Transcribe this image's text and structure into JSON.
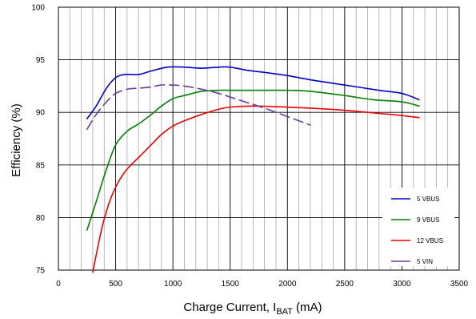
{
  "chart_data": {
    "type": "line",
    "xlabel": "Charge Current, I",
    "xlabel_sub": "BAT",
    "xlabel_unit": " (mA)",
    "ylabel": "Efficiency (%)",
    "xlim": [
      0,
      3500
    ],
    "ylim": [
      75,
      100
    ],
    "x_ticks": [
      0,
      500,
      1000,
      1500,
      2000,
      2500,
      3000,
      3500
    ],
    "y_ticks": [
      75,
      80,
      85,
      90,
      95,
      100
    ],
    "x_minor_step": 100,
    "grid": true,
    "legend_position": "bottom-right",
    "series": [
      {
        "name": "5 VBUS",
        "color": "#0000cc",
        "dashed": false,
        "points": [
          [
            250,
            89.4
          ],
          [
            330,
            90.6
          ],
          [
            420,
            92.3
          ],
          [
            500,
            93.3
          ],
          [
            580,
            93.6
          ],
          [
            700,
            93.6
          ],
          [
            800,
            93.9
          ],
          [
            950,
            94.3
          ],
          [
            1100,
            94.3
          ],
          [
            1250,
            94.2
          ],
          [
            1400,
            94.3
          ],
          [
            1500,
            94.3
          ],
          [
            1650,
            94.0
          ],
          [
            1800,
            93.8
          ],
          [
            2000,
            93.5
          ],
          [
            2200,
            93.1
          ],
          [
            2500,
            92.6
          ],
          [
            2800,
            92.1
          ],
          [
            3000,
            91.8
          ],
          [
            3150,
            91.2
          ]
        ]
      },
      {
        "name": "9 VBUS",
        "color": "#008000",
        "dashed": false,
        "points": [
          [
            250,
            78.8
          ],
          [
            330,
            81.5
          ],
          [
            420,
            84.6
          ],
          [
            500,
            86.9
          ],
          [
            600,
            88.2
          ],
          [
            700,
            88.9
          ],
          [
            800,
            89.7
          ],
          [
            900,
            90.6
          ],
          [
            1000,
            91.3
          ],
          [
            1100,
            91.6
          ],
          [
            1250,
            92.0
          ],
          [
            1400,
            92.1
          ],
          [
            1500,
            92.1
          ],
          [
            1800,
            92.1
          ],
          [
            2000,
            92.1
          ],
          [
            2200,
            92.0
          ],
          [
            2500,
            91.6
          ],
          [
            2750,
            91.2
          ],
          [
            3000,
            91.0
          ],
          [
            3150,
            90.6
          ]
        ]
      },
      {
        "name": "12 VBUS",
        "color": "#ee0000",
        "dashed": false,
        "points": [
          [
            300,
            74.8
          ],
          [
            380,
            79.0
          ],
          [
            450,
            81.6
          ],
          [
            520,
            83.3
          ],
          [
            600,
            84.6
          ],
          [
            700,
            85.7
          ],
          [
            800,
            86.8
          ],
          [
            900,
            87.9
          ],
          [
            1000,
            88.7
          ],
          [
            1100,
            89.2
          ],
          [
            1250,
            89.8
          ],
          [
            1400,
            90.3
          ],
          [
            1500,
            90.5
          ],
          [
            1700,
            90.6
          ],
          [
            2000,
            90.5
          ],
          [
            2200,
            90.4
          ],
          [
            2500,
            90.2
          ],
          [
            2800,
            89.9
          ],
          [
            3000,
            89.7
          ],
          [
            3150,
            89.5
          ]
        ]
      },
      {
        "name": "5 VIN",
        "color": "#6a3aa0",
        "dashed": true,
        "points": [
          [
            250,
            88.4
          ],
          [
            330,
            89.8
          ],
          [
            420,
            91.0
          ],
          [
            500,
            91.8
          ],
          [
            600,
            92.2
          ],
          [
            700,
            92.3
          ],
          [
            800,
            92.4
          ],
          [
            900,
            92.6
          ],
          [
            1000,
            92.6
          ],
          [
            1100,
            92.5
          ],
          [
            1250,
            92.2
          ],
          [
            1400,
            91.8
          ],
          [
            1600,
            91.1
          ],
          [
            1800,
            90.4
          ],
          [
            2000,
            89.6
          ],
          [
            2200,
            88.8
          ]
        ]
      }
    ]
  }
}
